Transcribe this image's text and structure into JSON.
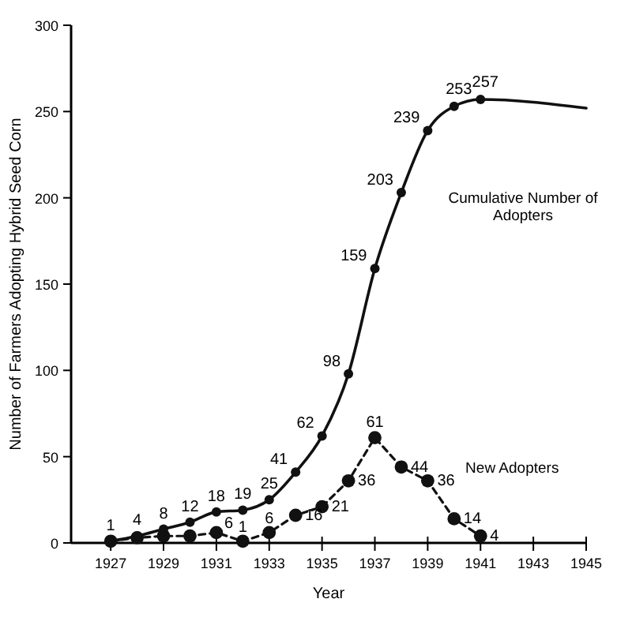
{
  "chart_data": {
    "type": "line",
    "xlabel": "Year",
    "ylabel": "Number of Farmers Adopting Hybrid Seed Corn",
    "xlim": [
      1925.5,
      1945
    ],
    "xticks": [
      1927,
      1929,
      1931,
      1933,
      1935,
      1937,
      1939,
      1941,
      1943,
      1945
    ],
    "ylim": [
      0,
      300
    ],
    "yticks": [
      0,
      50,
      100,
      150,
      200,
      250,
      300
    ],
    "grid": false,
    "marker": "circle",
    "series": [
      {
        "name": "Cumulative Number of Adopters",
        "color": "#111111",
        "line_style": "solid",
        "x": [
          1927,
          1928,
          1929,
          1930,
          1931,
          1932,
          1933,
          1934,
          1935,
          1936,
          1937,
          1938,
          1939,
          1940,
          1941,
          1945
        ],
        "values": [
          1,
          4,
          8,
          12,
          18,
          19,
          25,
          41,
          62,
          98,
          159,
          203,
          239,
          253,
          257,
          252
        ],
        "value_labels": [
          "1",
          "4",
          "8",
          "12",
          "18",
          "19",
          "25",
          "41",
          "62",
          "98",
          "159",
          "203",
          "239",
          "253",
          "257",
          null
        ],
        "marker": [
          "circle",
          "circle",
          "circle",
          "circle",
          "circle",
          "circle",
          "circle",
          "circle",
          "circle",
          "circle",
          "circle",
          "circle",
          "circle",
          "circle",
          "circle",
          "none"
        ]
      },
      {
        "name": "New Adopters",
        "color": "#111111",
        "line_style": "dashed",
        "x": [
          1927,
          1928,
          1929,
          1930,
          1931,
          1932,
          1933,
          1934,
          1935,
          1936,
          1937,
          1938,
          1939,
          1940,
          1941
        ],
        "values": [
          1,
          3,
          4,
          4,
          6,
          1,
          6,
          16,
          21,
          36,
          61,
          44,
          36,
          14,
          4
        ],
        "value_labels": [
          null,
          null,
          null,
          null,
          "6",
          "1",
          "6",
          "16",
          "21",
          "36",
          "61",
          "44",
          "36",
          "14",
          "4"
        ]
      }
    ]
  }
}
